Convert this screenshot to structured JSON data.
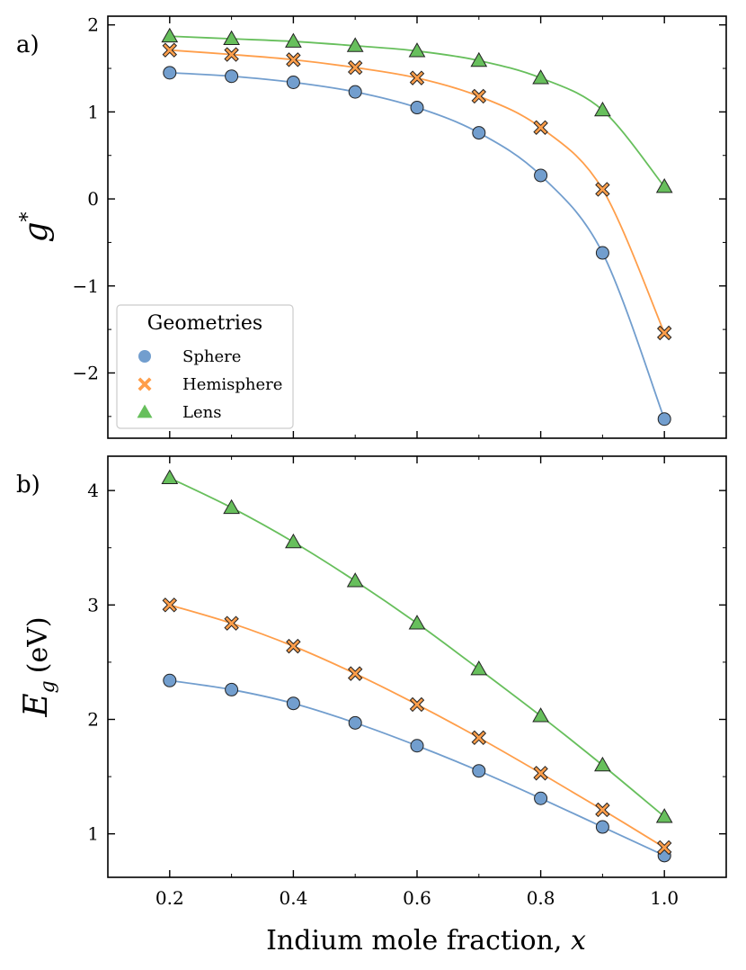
{
  "chart_data": [
    {
      "type": "line",
      "panel_label": "a)",
      "ylabel": "g",
      "ylabel_superscript": "*",
      "xlabel": "",
      "xlim": [
        0.1,
        1.1
      ],
      "ylim": [
        -2.75,
        2.1
      ],
      "x_ticks": [
        0.2,
        0.4,
        0.6,
        0.8,
        1.0
      ],
      "y_ticks": [
        -2,
        -1,
        0,
        1,
        2
      ],
      "y_tick_labels": [
        "−2",
        "−1",
        "0",
        "1",
        "2"
      ],
      "x_minor_ticks": [
        0.3,
        0.5,
        0.7,
        0.9
      ],
      "y_minor_ticks": [
        -2.5,
        -1.5,
        -0.5,
        0.5,
        1.5
      ],
      "grid": false,
      "legend": {
        "title": "Geometries",
        "placement": "lower-left",
        "entries": [
          "Sphere",
          "Hemisphere",
          "Lens"
        ]
      },
      "x": [
        0.2,
        0.3,
        0.4,
        0.5,
        0.6,
        0.7,
        0.8,
        0.9,
        1.0
      ],
      "series": [
        {
          "name": "Sphere",
          "marker": "circle",
          "color": "#729ece",
          "values": [
            1.45,
            1.41,
            1.34,
            1.23,
            1.05,
            0.76,
            0.27,
            -0.62,
            -2.53
          ]
        },
        {
          "name": "Hemisphere",
          "marker": "x",
          "color": "#ff9e4a",
          "values": [
            1.71,
            1.66,
            1.6,
            1.51,
            1.39,
            1.18,
            0.82,
            0.11,
            -1.54
          ]
        },
        {
          "name": "Lens",
          "marker": "triangle",
          "color": "#67bf5c",
          "values": [
            1.87,
            1.84,
            1.81,
            1.76,
            1.7,
            1.59,
            1.39,
            1.02,
            0.14
          ]
        }
      ]
    },
    {
      "type": "line",
      "panel_label": "b)",
      "ylabel": "E",
      "ylabel_subscript": "g",
      "ylabel_unit": "(eV)",
      "xlabel": "Indium mole fraction, ",
      "xlabel_var": "x",
      "xlim": [
        0.1,
        1.1
      ],
      "ylim": [
        0.62,
        4.3
      ],
      "x_ticks": [
        0.2,
        0.4,
        0.6,
        0.8,
        1.0
      ],
      "x_tick_labels": [
        "0.2",
        "0.4",
        "0.6",
        "0.8",
        "1.0"
      ],
      "y_ticks": [
        1,
        2,
        3,
        4
      ],
      "y_tick_labels": [
        "1",
        "2",
        "3",
        "4"
      ],
      "x_minor_ticks": [
        0.3,
        0.5,
        0.7,
        0.9
      ],
      "y_minor_ticks": [
        1.5,
        2.5,
        3.5
      ],
      "grid": false,
      "x": [
        0.2,
        0.3,
        0.4,
        0.5,
        0.6,
        0.7,
        0.8,
        0.9,
        1.0
      ],
      "series": [
        {
          "name": "Sphere",
          "marker": "circle",
          "color": "#729ece",
          "values": [
            2.34,
            2.26,
            2.14,
            1.97,
            1.77,
            1.55,
            1.31,
            1.06,
            0.81
          ]
        },
        {
          "name": "Hemisphere",
          "marker": "x",
          "color": "#ff9e4a",
          "values": [
            3.0,
            2.84,
            2.64,
            2.4,
            2.13,
            1.84,
            1.53,
            1.21,
            0.88
          ]
        },
        {
          "name": "Lens",
          "marker": "triangle",
          "color": "#67bf5c",
          "values": [
            4.11,
            3.85,
            3.55,
            3.21,
            2.84,
            2.44,
            2.03,
            1.6,
            1.15
          ]
        }
      ]
    }
  ]
}
